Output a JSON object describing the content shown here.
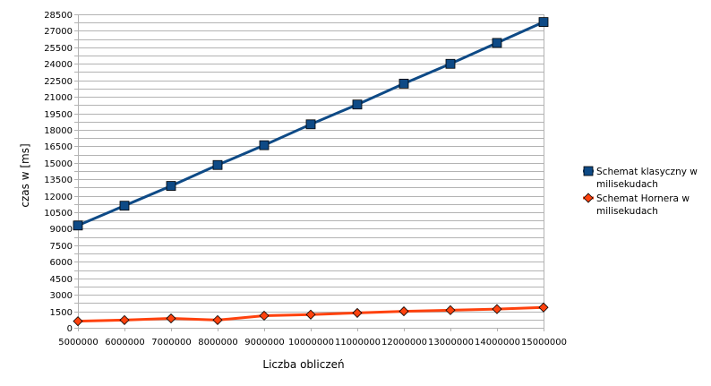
{
  "chart_data": {
    "type": "line",
    "title": "",
    "xlabel": "Liczba obliczeń",
    "ylabel": "czas w [ms]",
    "categories": [
      "5000000",
      "6000000",
      "7000000",
      "8000000",
      "9000000",
      "10000000",
      "11000000",
      "12000000",
      "13000000",
      "14000000",
      "15000000"
    ],
    "ylim": [
      0,
      28500
    ],
    "ytick_step": 750,
    "ytick_label_step": 1500,
    "grid": true,
    "legend_position": "right",
    "series": [
      {
        "name": "Schemat klasyczny w milisekudach",
        "legend_lines": [
          "Schemat klasyczny w",
          "milisekudach"
        ],
        "color": "#0e4a86",
        "marker": "square",
        "values": [
          9300,
          11100,
          12900,
          14800,
          16600,
          18500,
          20300,
          22200,
          24000,
          25900,
          27800
        ]
      },
      {
        "name": "Schemat Hornera w milisekudach",
        "legend_lines": [
          "Schemat Hornera w",
          "milisekudach"
        ],
        "color": "#ff420e",
        "marker": "diamond",
        "values": [
          600,
          700,
          850,
          700,
          1100,
          1200,
          1350,
          1500,
          1600,
          1700,
          1850
        ]
      }
    ]
  }
}
